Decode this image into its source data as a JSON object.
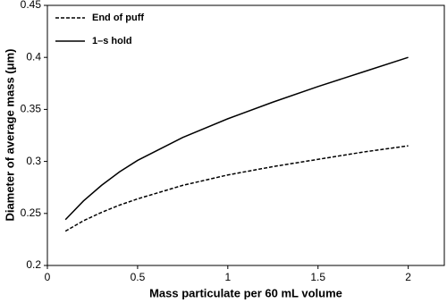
{
  "chart_data": {
    "type": "line",
    "xlabel": "Mass particulate per 60 mL volume",
    "ylabel": "Diameter of average mass (μm)",
    "x": [
      0.1,
      0.2,
      0.3,
      0.4,
      0.5,
      0.75,
      1,
      1.25,
      1.5,
      1.75,
      2
    ],
    "series": [
      {
        "name": "End of puff",
        "color": "#000000",
        "dashed": true,
        "values": [
          0.233,
          0.243,
          0.251,
          0.258,
          0.264,
          0.277,
          0.287,
          0.295,
          0.302,
          0.309,
          0.315
        ]
      },
      {
        "name": "1–s hold",
        "color": "#000000",
        "dashed": false,
        "values": [
          0.244,
          0.262,
          0.277,
          0.29,
          0.301,
          0.323,
          0.341,
          0.357,
          0.372,
          0.386,
          0.4
        ]
      }
    ],
    "xlim": [
      0,
      2.2
    ],
    "xticks": [
      0,
      0.5,
      1,
      1.5,
      2
    ],
    "ylim": [
      0.2,
      0.45
    ],
    "yticks": [
      0.2,
      0.25,
      0.3,
      0.35,
      0.4,
      0.45
    ],
    "grid": false,
    "legend": "upper left"
  }
}
